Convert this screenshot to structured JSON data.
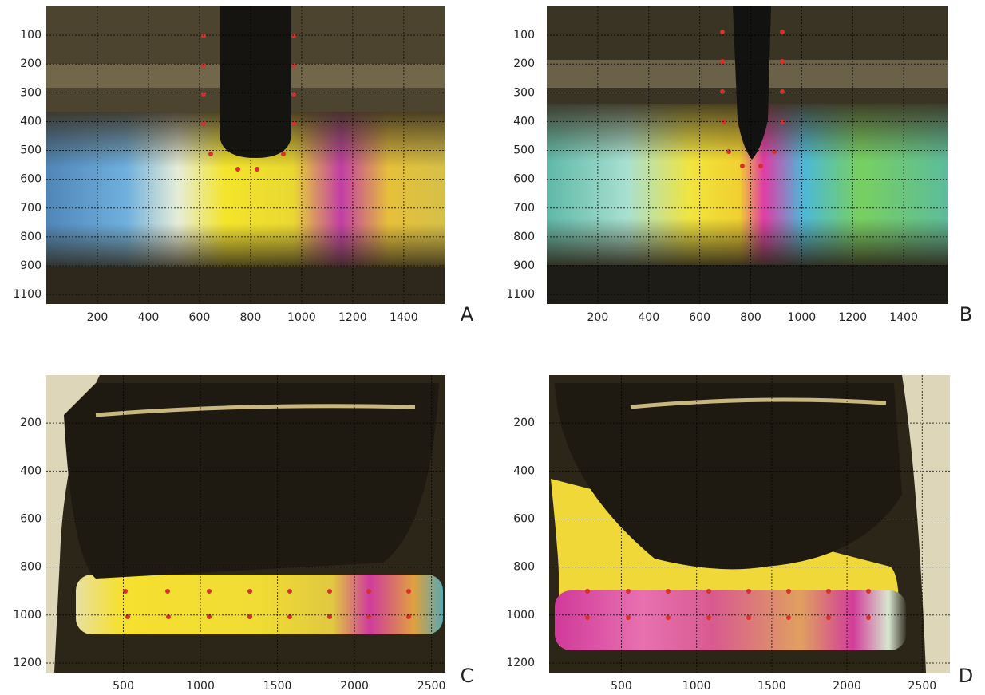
{
  "chart_data": [
    {
      "type": "image",
      "label": "A",
      "xlim": [
        0,
        1560
      ],
      "xticks": [
        200,
        400,
        600,
        800,
        1000,
        1200,
        1400
      ],
      "y_categories": [
        "100",
        "200",
        "300",
        "400",
        "500",
        "600",
        "700",
        "800",
        "900",
        "1100"
      ]
    },
    {
      "type": "image",
      "label": "B",
      "xlim": [
        0,
        1575
      ],
      "xticks": [
        200,
        400,
        600,
        800,
        1000,
        1200,
        1400
      ],
      "y_categories": [
        "100",
        "200",
        "300",
        "400",
        "500",
        "600",
        "700",
        "800",
        "900",
        "1100"
      ]
    },
    {
      "type": "image",
      "label": "C",
      "xlim": [
        0,
        2590
      ],
      "xticks": [
        500,
        1000,
        1500,
        2000,
        2500
      ],
      "ylim": [
        1240,
        0
      ],
      "yticks": [
        200,
        400,
        600,
        800,
        1000,
        1200
      ]
    },
    {
      "type": "image",
      "label": "D",
      "xlim": [
        20,
        2684
      ],
      "xticks": [
        500,
        1000,
        1500,
        2000,
        2500
      ],
      "ylim": [
        1240,
        0
      ],
      "yticks": [
        200,
        400,
        600,
        800,
        1000,
        1200
      ]
    }
  ]
}
